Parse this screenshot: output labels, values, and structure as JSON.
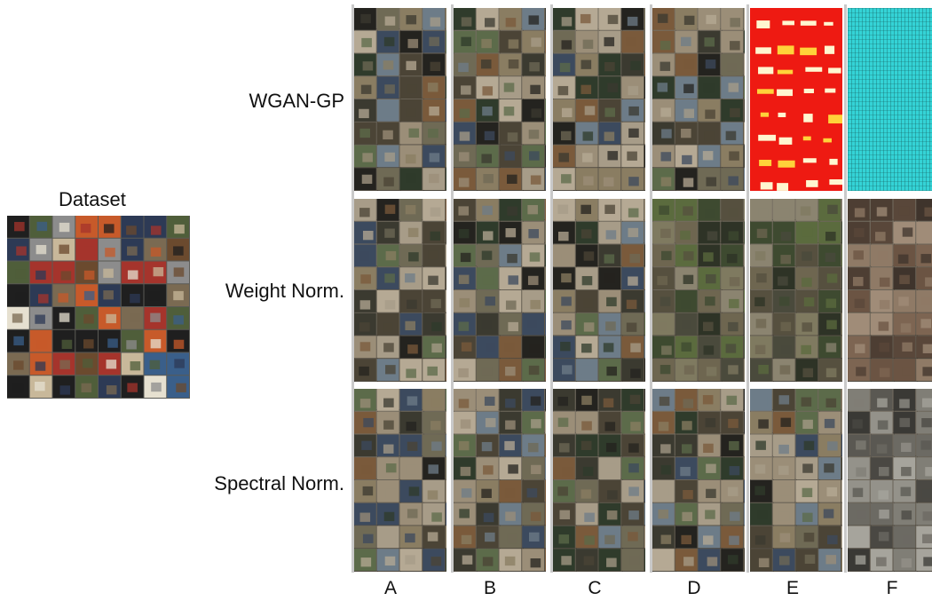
{
  "dataset_label": "Dataset",
  "row_labels": [
    "WGAN-GP",
    "Weight Norm.",
    "Spectral Norm."
  ],
  "column_labels": [
    "A",
    "B",
    "C",
    "D",
    "E",
    "F"
  ]
}
